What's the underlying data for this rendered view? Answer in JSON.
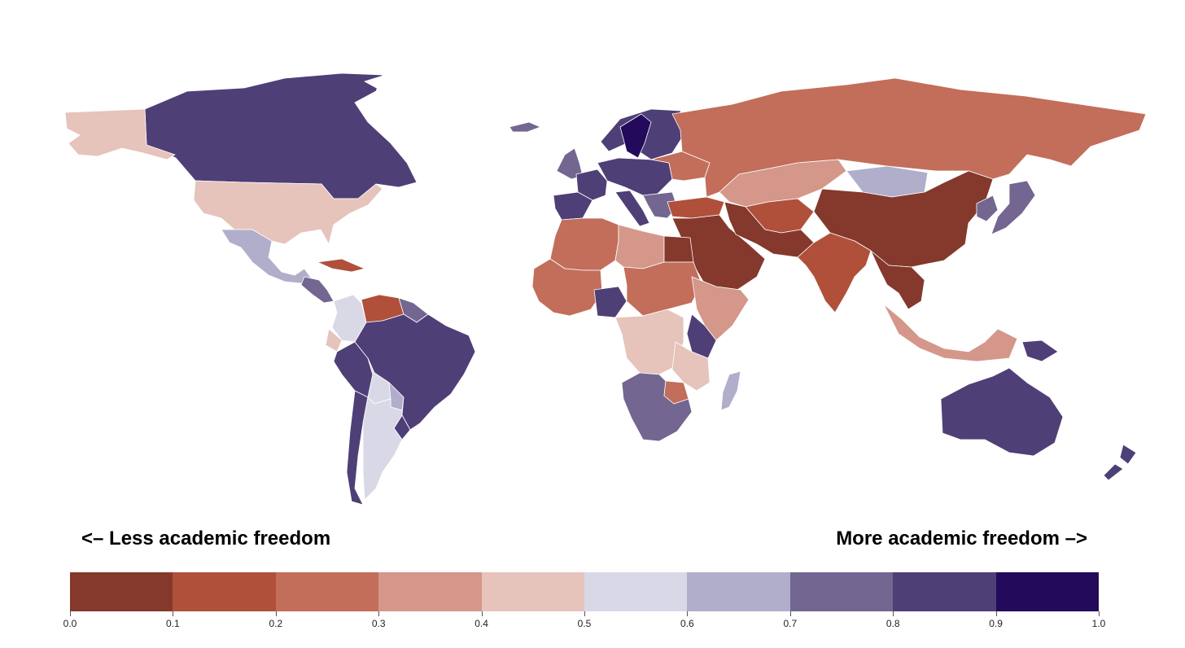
{
  "labels": {
    "left": "<– Less academic freedom",
    "right": "More academic freedom –>"
  },
  "legend": {
    "bins": [
      {
        "min": 0.0,
        "max": 0.1,
        "color": "#84392c"
      },
      {
        "min": 0.1,
        "max": 0.2,
        "color": "#b0503b"
      },
      {
        "min": 0.2,
        "max": 0.3,
        "color": "#c26e5a"
      },
      {
        "min": 0.3,
        "max": 0.4,
        "color": "#d4978a"
      },
      {
        "min": 0.4,
        "max": 0.5,
        "color": "#e6c3bb"
      },
      {
        "min": 0.5,
        "max": 0.6,
        "color": "#d9d8e6"
      },
      {
        "min": 0.6,
        "max": 0.7,
        "color": "#b0aecb"
      },
      {
        "min": 0.7,
        "max": 0.8,
        "color": "#736690"
      },
      {
        "min": 0.8,
        "max": 0.9,
        "color": "#4f3f77"
      },
      {
        "min": 0.9,
        "max": 1.0,
        "color": "#230a5b"
      }
    ],
    "ticks": [
      "0.0",
      "0.1",
      "0.2",
      "0.3",
      "0.4",
      "0.5",
      "0.6",
      "0.7",
      "0.8",
      "0.9",
      "1.0"
    ]
  },
  "map_data": {
    "type": "choropleth",
    "projection": "equirectangular",
    "no_data_color": "#ffffff",
    "regions": [
      {
        "id": "canada",
        "value": 0.85
      },
      {
        "id": "usa",
        "value": 0.45
      },
      {
        "id": "alaska",
        "value": 0.45
      },
      {
        "id": "mexico",
        "value": 0.65
      },
      {
        "id": "central-america",
        "value": 0.75
      },
      {
        "id": "cuba",
        "value": 0.15
      },
      {
        "id": "greenland",
        "value": null
      },
      {
        "id": "iceland",
        "value": 0.75
      },
      {
        "id": "colombia",
        "value": 0.55
      },
      {
        "id": "venezuela",
        "value": 0.15
      },
      {
        "id": "guianas",
        "value": 0.75
      },
      {
        "id": "ecuador",
        "value": 0.45
      },
      {
        "id": "peru",
        "value": 0.85
      },
      {
        "id": "brazil",
        "value": 0.85
      },
      {
        "id": "bolivia",
        "value": 0.55
      },
      {
        "id": "paraguay",
        "value": 0.65
      },
      {
        "id": "uruguay",
        "value": 0.85
      },
      {
        "id": "chile",
        "value": 0.85
      },
      {
        "id": "argentina",
        "value": 0.55
      },
      {
        "id": "uk-ireland",
        "value": 0.75
      },
      {
        "id": "france",
        "value": 0.85
      },
      {
        "id": "iberia",
        "value": 0.85
      },
      {
        "id": "scandinavia",
        "value": 0.85
      },
      {
        "id": "sweden",
        "value": 0.95
      },
      {
        "id": "central-europe",
        "value": 0.85
      },
      {
        "id": "italy",
        "value": 0.85
      },
      {
        "id": "balkans",
        "value": 0.7
      },
      {
        "id": "belarus-ukraine",
        "value": 0.25
      },
      {
        "id": "russia",
        "value": 0.25
      },
      {
        "id": "turkey",
        "value": 0.15
      },
      {
        "id": "kazakhstan",
        "value": 0.35
      },
      {
        "id": "central-asia",
        "value": 0.15
      },
      {
        "id": "mongolia",
        "value": 0.65
      },
      {
        "id": "china",
        "value": 0.05
      },
      {
        "id": "korea-japan",
        "value": 0.75
      },
      {
        "id": "middle-east",
        "value": 0.05
      },
      {
        "id": "iran",
        "value": 0.05
      },
      {
        "id": "india",
        "value": 0.15
      },
      {
        "id": "southeast-asia",
        "value": 0.05
      },
      {
        "id": "maritime-southeast-asia",
        "value": 0.35
      },
      {
        "id": "papua",
        "value": 0.85
      },
      {
        "id": "australia",
        "value": 0.85
      },
      {
        "id": "new-zealand",
        "value": 0.85
      },
      {
        "id": "north-africa-west",
        "value": 0.25
      },
      {
        "id": "libya",
        "value": 0.35
      },
      {
        "id": "egypt",
        "value": 0.05
      },
      {
        "id": "west-africa",
        "value": 0.25
      },
      {
        "id": "nigeria",
        "value": 0.85
      },
      {
        "id": "chad-sudan",
        "value": 0.25
      },
      {
        "id": "horn-of-africa",
        "value": 0.35
      },
      {
        "id": "central-africa",
        "value": 0.45
      },
      {
        "id": "east-africa",
        "value": 0.45
      },
      {
        "id": "kenya",
        "value": 0.85
      },
      {
        "id": "southern-africa",
        "value": 0.75
      },
      {
        "id": "zimbabwe",
        "value": 0.25
      },
      {
        "id": "madagascar",
        "value": 0.65
      }
    ]
  }
}
